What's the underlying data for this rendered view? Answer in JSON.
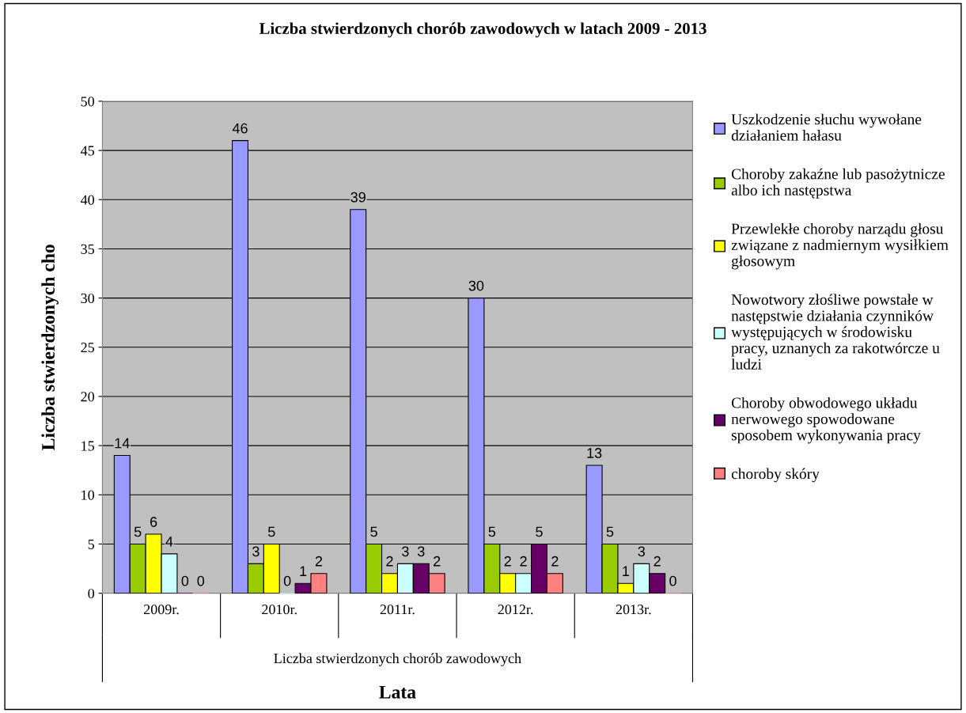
{
  "chart_data": {
    "type": "bar",
    "title": "Liczba stwierdzonych chorób zawodowych w latach 2009 - 2013",
    "xlabel": "Lata",
    "ylabel": "Liczba stwierdzonych cho",
    "annotations": [
      "Liczba stwierdzonych chorób zawodowych"
    ],
    "categories": [
      "2009r.",
      "2010r.",
      "2011r.",
      "2012r.",
      "2013r."
    ],
    "series": [
      {
        "name": "Uszkodzenie słuchu wywołane\ndziałaniem hałasu",
        "color": "#9999ff",
        "values": [
          14,
          46,
          39,
          30,
          13
        ]
      },
      {
        "name": "Choroby zakaźne lub pasożytnicze\nalbo ich następstwa",
        "color": "#99cc00",
        "values": [
          5,
          3,
          5,
          5,
          5
        ]
      },
      {
        "name": "Przewlekłe choroby narządu głosu\nzwiązane z nadmiernym wysiłkiem\ngłosowym",
        "color": "#ffff00",
        "values": [
          6,
          5,
          2,
          2,
          1
        ]
      },
      {
        "name": "Nowotwory złośliwe powstałe w\nnastępstwie działania czynników\nwystępujących w środowisku\npracy, uznanych za rakotwórcze u\nludzi",
        "color": "#ccffff",
        "values": [
          4,
          0,
          3,
          2,
          3
        ]
      },
      {
        "name": "Choroby obwodowego układu\nnerwowego spowodowane\nsposobem wykonywania pracy",
        "color": "#660066",
        "values": [
          0,
          1,
          3,
          5,
          2
        ]
      },
      {
        "name": "choroby skóry",
        "color": "#ff8080",
        "values": [
          0,
          2,
          2,
          2,
          0
        ]
      }
    ],
    "ylim": [
      0,
      50
    ],
    "yticks": [
      0,
      5,
      10,
      15,
      20,
      25,
      30,
      35,
      40,
      45,
      50
    ],
    "grid": "y",
    "legend": "right",
    "data_labels": true
  }
}
